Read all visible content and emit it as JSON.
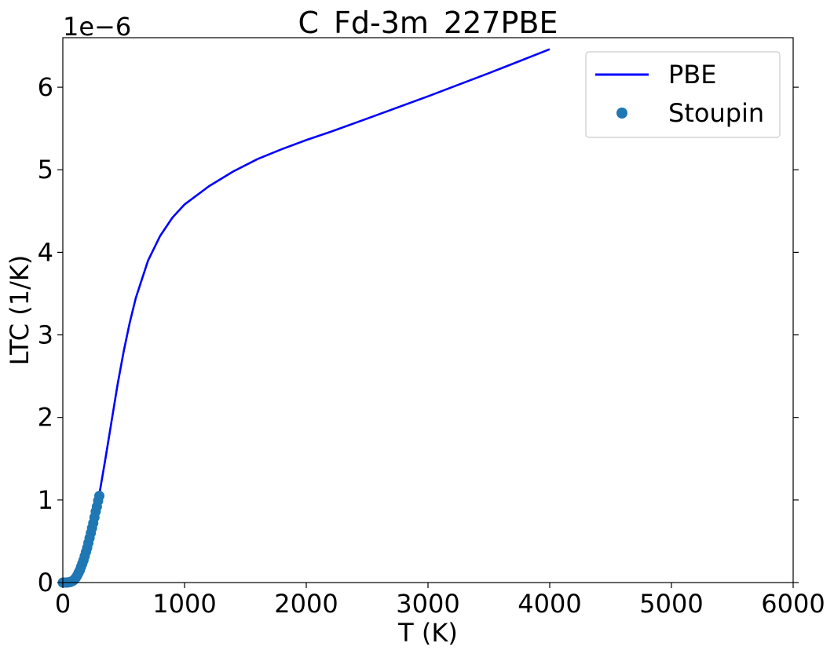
{
  "chart_data": {
    "type": "line",
    "title": "C_Fd-3m_227PBE",
    "xlabel": "T (K)",
    "ylabel": "LTC (1/K)",
    "y_multiplier_label": "1e−6",
    "xlim": [
      0,
      6000
    ],
    "ylim": [
      0,
      6.6
    ],
    "y_scale_factor": 1e-06,
    "xticks": [
      0,
      1000,
      2000,
      3000,
      4000,
      5000,
      6000
    ],
    "xtick_labels": [
      "0",
      "1000",
      "2000",
      "3000",
      "4000",
      "5000",
      "6000"
    ],
    "yticks": [
      0,
      1,
      2,
      3,
      4,
      5,
      6
    ],
    "ytick_labels": [
      "0",
      "1",
      "2",
      "3",
      "4",
      "5",
      "6"
    ],
    "grid": false,
    "legend_position": "top-right",
    "series": [
      {
        "name": "PBE",
        "kind": "line",
        "color": "#0000ff",
        "x": [
          0,
          50,
          100,
          150,
          200,
          250,
          300,
          350,
          400,
          450,
          500,
          550,
          600,
          700,
          800,
          900,
          1000,
          1200,
          1400,
          1600,
          1800,
          2000,
          2200,
          2500,
          3000,
          3500,
          4000
        ],
        "y": [
          0,
          0.004,
          0.06,
          0.2,
          0.42,
          0.72,
          1.07,
          1.5,
          1.95,
          2.4,
          2.8,
          3.15,
          3.45,
          3.9,
          4.2,
          4.42,
          4.58,
          4.8,
          4.98,
          5.13,
          5.25,
          5.36,
          5.46,
          5.62,
          5.89,
          6.17,
          6.46
        ]
      },
      {
        "name": "Stoupin",
        "kind": "scatter",
        "color": "#1f77b4",
        "x": [
          0,
          10,
          20,
          30,
          40,
          50,
          60,
          70,
          80,
          90,
          100,
          110,
          120,
          130,
          140,
          150,
          160,
          170,
          180,
          190,
          200,
          210,
          220,
          230,
          240,
          250,
          260,
          270,
          280,
          290,
          300
        ],
        "y": [
          0,
          0.0,
          0.0,
          0.0,
          0.001,
          0.003,
          0.006,
          0.011,
          0.019,
          0.03,
          0.045,
          0.065,
          0.09,
          0.12,
          0.15,
          0.19,
          0.23,
          0.27,
          0.32,
          0.37,
          0.42,
          0.48,
          0.54,
          0.6,
          0.66,
          0.72,
          0.79,
          0.86,
          0.92,
          0.99,
          1.05
        ]
      }
    ]
  }
}
